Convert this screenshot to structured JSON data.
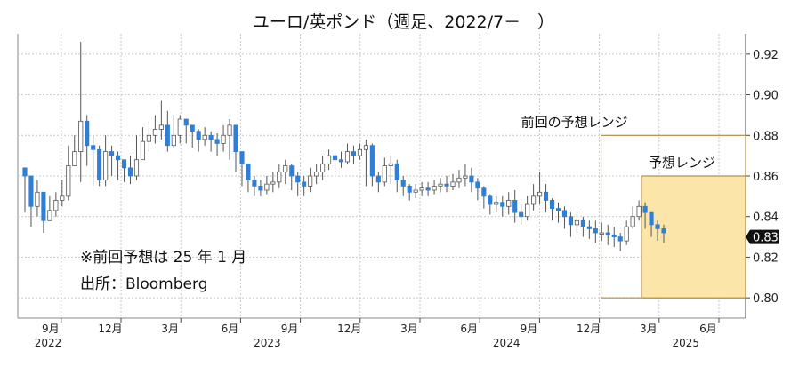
{
  "title": "ユーロ/英ポンド（週足、2022/7－　）",
  "note1": "※前回予想は 25 年 1 月",
  "note2": "出所：Bloomberg",
  "prev_range_label": "前回の予想レンジ",
  "forecast_label": "予想レンジ",
  "last_price_label": "0.83",
  "colors": {
    "up": "#ffffff",
    "down": "#2f7fd6",
    "forecast_fill": "#fbe5a8",
    "forecast_stroke": "#a67c2e",
    "grid": "#c9c9c9"
  },
  "chart_data": {
    "type": "candlestick",
    "title": "ユーロ/英ポンド（週足、2022/7－　）",
    "ylim": [
      0.79,
      0.93
    ],
    "y_ticks": [
      "0.80",
      "0.82",
      "0.84",
      "0.86",
      "0.88",
      "0.90",
      "0.92"
    ],
    "x_ticks": [
      {
        "label": "9月",
        "date": "2022-09"
      },
      {
        "label": "12月",
        "date": "2022-12"
      },
      {
        "label": "3月",
        "date": "2023-03"
      },
      {
        "label": "6月",
        "date": "2023-06"
      },
      {
        "label": "9月",
        "date": "2023-09"
      },
      {
        "label": "12月",
        "date": "2023-12"
      },
      {
        "label": "3月",
        "date": "2024-03"
      },
      {
        "label": "6月",
        "date": "2024-06"
      },
      {
        "label": "9月",
        "date": "2024-09"
      },
      {
        "label": "12月",
        "date": "2024-12"
      },
      {
        "label": "3月",
        "date": "2025-03"
      },
      {
        "label": "6月",
        "date": "2025-06"
      }
    ],
    "year_labels": [
      {
        "label": "2022",
        "date": "2022-07"
      },
      {
        "label": "2023",
        "date": "2023-06"
      },
      {
        "label": "2024",
        "date": "2024-06"
      },
      {
        "label": "2025",
        "date": "2025-03"
      }
    ],
    "weekly_close": [
      0.86,
      0.845,
      0.852,
      0.838,
      0.843,
      0.848,
      0.85,
      0.865,
      0.872,
      0.887,
      0.875,
      0.873,
      0.858,
      0.872,
      0.87,
      0.868,
      0.864,
      0.86,
      0.868,
      0.877,
      0.88,
      0.883,
      0.885,
      0.875,
      0.88,
      0.888,
      0.885,
      0.882,
      0.878,
      0.88,
      0.878,
      0.876,
      0.88,
      0.885,
      0.872,
      0.866,
      0.858,
      0.855,
      0.853,
      0.856,
      0.857,
      0.862,
      0.865,
      0.86,
      0.857,
      0.855,
      0.86,
      0.862,
      0.866,
      0.87,
      0.868,
      0.867,
      0.872,
      0.87,
      0.873,
      0.875,
      0.86,
      0.857,
      0.865,
      0.866,
      0.858,
      0.855,
      0.852,
      0.853,
      0.854,
      0.853,
      0.855,
      0.856,
      0.855,
      0.857,
      0.859,
      0.86,
      0.857,
      0.854,
      0.85,
      0.846,
      0.847,
      0.845,
      0.848,
      0.842,
      0.84,
      0.846,
      0.85,
      0.852,
      0.848,
      0.844,
      0.843,
      0.84,
      0.836,
      0.838,
      0.835,
      0.834,
      0.832,
      0.832,
      0.831,
      0.83,
      0.828,
      0.835,
      0.84,
      0.845,
      0.842,
      0.836,
      0.834,
      0.832
    ],
    "weekly_high": [
      0.862,
      0.855,
      0.858,
      0.848,
      0.85,
      0.852,
      0.858,
      0.875,
      0.88,
      0.926,
      0.89,
      0.88,
      0.875,
      0.88,
      0.875,
      0.872,
      0.868,
      0.87,
      0.88,
      0.884,
      0.887,
      0.89,
      0.897,
      0.892,
      0.89,
      0.89,
      0.888,
      0.885,
      0.883,
      0.884,
      0.882,
      0.881,
      0.885,
      0.888,
      0.885,
      0.872,
      0.866,
      0.86,
      0.858,
      0.86,
      0.862,
      0.866,
      0.868,
      0.866,
      0.862,
      0.86,
      0.864,
      0.866,
      0.87,
      0.873,
      0.872,
      0.872,
      0.876,
      0.875,
      0.876,
      0.878,
      0.876,
      0.862,
      0.869,
      0.87,
      0.868,
      0.86,
      0.856,
      0.856,
      0.857,
      0.857,
      0.858,
      0.859,
      0.86,
      0.861,
      0.863,
      0.866,
      0.864,
      0.859,
      0.855,
      0.851,
      0.85,
      0.85,
      0.852,
      0.853,
      0.846,
      0.85,
      0.856,
      0.862,
      0.856,
      0.849,
      0.847,
      0.845,
      0.842,
      0.842,
      0.84,
      0.838,
      0.838,
      0.837,
      0.836,
      0.835,
      0.832,
      0.838,
      0.845,
      0.848,
      0.847,
      0.842,
      0.838,
      0.836
    ],
    "weekly_low": [
      0.842,
      0.835,
      0.84,
      0.832,
      0.838,
      0.84,
      0.845,
      0.848,
      0.865,
      0.857,
      0.865,
      0.855,
      0.855,
      0.855,
      0.86,
      0.858,
      0.857,
      0.856,
      0.858,
      0.87,
      0.872,
      0.876,
      0.878,
      0.872,
      0.874,
      0.876,
      0.876,
      0.874,
      0.872,
      0.875,
      0.872,
      0.87,
      0.872,
      0.868,
      0.862,
      0.855,
      0.852,
      0.85,
      0.85,
      0.851,
      0.852,
      0.854,
      0.856,
      0.853,
      0.85,
      0.85,
      0.852,
      0.856,
      0.858,
      0.863,
      0.862,
      0.864,
      0.866,
      0.866,
      0.868,
      0.855,
      0.855,
      0.852,
      0.855,
      0.856,
      0.852,
      0.85,
      0.848,
      0.849,
      0.85,
      0.85,
      0.851,
      0.852,
      0.852,
      0.853,
      0.854,
      0.855,
      0.852,
      0.848,
      0.844,
      0.841,
      0.842,
      0.84,
      0.841,
      0.837,
      0.836,
      0.838,
      0.843,
      0.846,
      0.842,
      0.838,
      0.837,
      0.834,
      0.83,
      0.832,
      0.83,
      0.829,
      0.827,
      0.828,
      0.826,
      0.825,
      0.823,
      0.826,
      0.834,
      0.838,
      0.834,
      0.83,
      0.828,
      0.827
    ],
    "forecast_range": {
      "label": "予想レンジ",
      "low": 0.8,
      "high": 0.86,
      "from": "2025-01",
      "to": "2025-06"
    },
    "previous_range": {
      "label": "前回の予想レンジ",
      "low": 0.8,
      "high": 0.88,
      "from": "2024-12",
      "to": "2025-06"
    },
    "last_value": 0.83
  }
}
